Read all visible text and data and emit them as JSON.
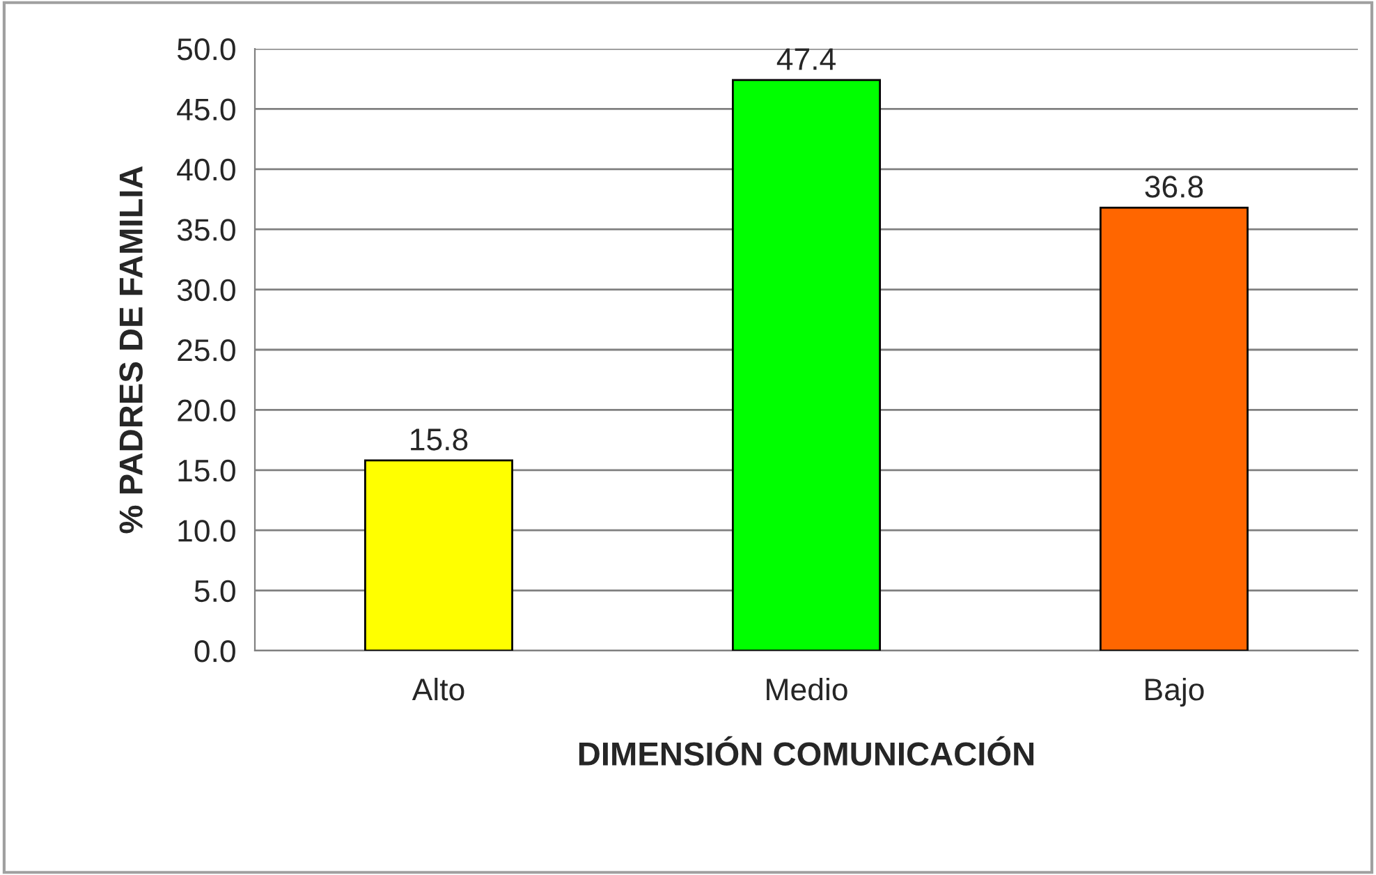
{
  "chart_data": {
    "type": "bar",
    "xlabel": "DIMENSIÓN COMUNICACIÓN",
    "ylabel": "% PADRES DE FAMILIA",
    "categories": [
      "Alto",
      "Medio",
      "Bajo"
    ],
    "values": [
      15.8,
      47.4,
      36.8
    ],
    "colors": [
      "#ffff00",
      "#00ff00",
      "#ff6600"
    ],
    "ylim": [
      0,
      50
    ],
    "yticks": [
      {
        "value": 0,
        "label": "0.0"
      },
      {
        "value": 5,
        "label": "5.0"
      },
      {
        "value": 10,
        "label": "10.0"
      },
      {
        "value": 15,
        "label": "15.0"
      },
      {
        "value": 20,
        "label": "20.0"
      },
      {
        "value": 25,
        "label": "25.0"
      },
      {
        "value": 30,
        "label": "30.0"
      },
      {
        "value": 35,
        "label": "35.0"
      },
      {
        "value": 40,
        "label": "40.0"
      },
      {
        "value": 45,
        "label": "45.0"
      },
      {
        "value": 50,
        "label": "50.0"
      }
    ],
    "grid": "y",
    "data_labels": true,
    "legend": false
  }
}
